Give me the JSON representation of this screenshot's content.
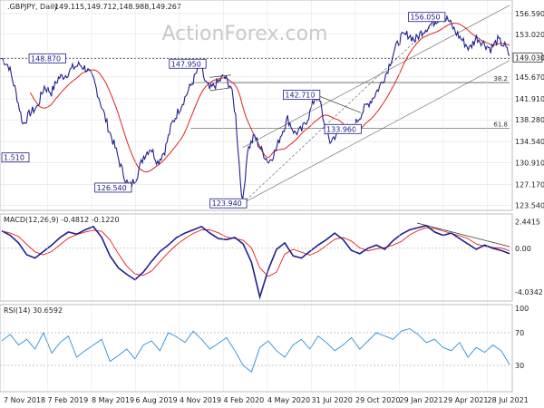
{
  "header": {
    "symbol_line": ".GBPJPY, Daily",
    "ohlc": "149.115,149.712,148.988,149.267"
  },
  "watermark": "ActionForex.com",
  "colors": {
    "price": "#1f1f8f",
    "ma": "#e02020",
    "macd": "#1f1f8f",
    "signal": "#e02020",
    "rsi": "#2b8fd9",
    "channel": "#777777",
    "grid": "#d9d9d9",
    "label_border": "#1a1a80"
  },
  "chart_data": [
    {
      "type": "line",
      "name": "price",
      "y_ticks": [
        "156.590",
        "153.020",
        "149.030",
        "145.670",
        "141.910",
        "138.280",
        "134.540",
        "130.910",
        "127.170",
        "123.540"
      ],
      "ylim": [
        123.0,
        158.3
      ],
      "x_ticks": [
        "7 Nov 2018",
        "7 Feb 2019",
        "8 May 2019",
        "6 Aug 2019",
        "4 Nov 2019",
        "4 Feb 2020",
        "4 May 2020",
        "31 Jul 2020",
        "29 Oct 2020",
        "29 Jan 2021",
        "29 Apr 2021",
        "28 Jul 2021"
      ],
      "current_price": "149.030",
      "fib_levels": [
        {
          "label": "38.2",
          "value": 144.7
        },
        {
          "label": "61.8",
          "value": 136.8
        }
      ],
      "reference_level": 148.87,
      "annotations": [
        "148.870",
        "147.950",
        "1.510",
        "126.540",
        "123.940",
        "142.710",
        "133.960",
        "156.050"
      ],
      "anchor_points": [
        [
          0,
          148.9
        ],
        [
          3,
          147.5
        ],
        [
          6,
          143.0
        ],
        [
          9,
          137.5
        ],
        [
          12,
          139.5
        ],
        [
          15,
          140.5
        ],
        [
          18,
          144.0
        ],
        [
          21,
          143.0
        ],
        [
          24,
          145.5
        ],
        [
          27,
          146.0
        ],
        [
          30,
          147.2
        ],
        [
          33,
          147.8
        ],
        [
          36,
          147.0
        ],
        [
          39,
          145.0
        ],
        [
          42,
          141.0
        ],
        [
          45,
          137.0
        ],
        [
          48,
          133.5
        ],
        [
          51,
          129.5
        ],
        [
          54,
          126.6
        ],
        [
          57,
          128.5
        ],
        [
          60,
          132.0
        ],
        [
          63,
          133.5
        ],
        [
          66,
          131.0
        ],
        [
          69,
          133.0
        ],
        [
          72,
          137.5
        ],
        [
          75,
          140.0
        ],
        [
          78,
          142.5
        ],
        [
          81,
          145.0
        ],
        [
          84,
          147.9
        ],
        [
          86,
          145.0
        ],
        [
          88,
          143.5
        ],
        [
          91,
          144.5
        ],
        [
          94,
          145.8
        ],
        [
          97,
          144.0
        ],
        [
          99,
          139.0
        ],
        [
          101,
          128.0
        ],
        [
          102,
          123.9
        ],
        [
          104,
          133.0
        ],
        [
          107,
          135.5
        ],
        [
          110,
          133.0
        ],
        [
          113,
          131.0
        ],
        [
          116,
          133.0
        ],
        [
          118,
          135.5
        ],
        [
          121,
          138.5
        ],
        [
          124,
          136.0
        ],
        [
          127,
          136.5
        ],
        [
          130,
          139.0
        ],
        [
          133,
          142.6
        ],
        [
          135,
          141.0
        ],
        [
          137,
          136.5
        ],
        [
          139,
          134.5
        ],
        [
          142,
          136.0
        ],
        [
          145,
          137.0
        ],
        [
          148,
          136.5
        ],
        [
          151,
          138.5
        ],
        [
          154,
          140.5
        ],
        [
          157,
          142.0
        ],
        [
          160,
          144.0
        ],
        [
          163,
          146.5
        ],
        [
          166,
          150.0
        ],
        [
          169,
          152.5
        ],
        [
          172,
          153.0
        ],
        [
          175,
          152.0
        ],
        [
          178,
          153.5
        ],
        [
          181,
          154.5
        ],
        [
          184,
          155.5
        ],
        [
          186,
          156.0
        ],
        [
          189,
          155.5
        ],
        [
          192,
          153.5
        ],
        [
          195,
          152.0
        ],
        [
          198,
          150.5
        ],
        [
          201,
          152.5
        ],
        [
          204,
          151.5
        ],
        [
          207,
          150.5
        ],
        [
          210,
          152.0
        ],
        [
          213,
          151.0
        ],
        [
          215,
          149.3
        ]
      ]
    },
    {
      "type": "line",
      "name": "MACD",
      "label": "MACD(12,26,9) -0.4812 -0.1220",
      "y_ticks": [
        "2.4415",
        "0.00",
        "-4.0342"
      ],
      "ylim": [
        -4.7,
        3.0
      ],
      "values": [
        1.6,
        1.2,
        0.5,
        -0.6,
        -0.9,
        -0.3,
        0.3,
        1.0,
        1.5,
        1.3,
        1.7,
        2.0,
        1.0,
        -0.7,
        -1.8,
        -2.4,
        -2.9,
        -2.2,
        -1.2,
        -0.3,
        0.3,
        1.0,
        1.4,
        1.7,
        2.0,
        1.4,
        0.9,
        0.8,
        1.0,
        0.4,
        -1.3,
        -4.5,
        -2.0,
        -0.1,
        0.5,
        -0.7,
        -0.9,
        -0.3,
        0.3,
        0.8,
        1.4,
        0.8,
        -0.2,
        -0.5,
        0.0,
        0.3,
        -0.1,
        0.7,
        1.3,
        1.7,
        1.9,
        2.1,
        1.5,
        1.2,
        1.4,
        0.9,
        0.4,
        -0.1,
        0.3,
        0.0,
        -0.2,
        -0.5
      ]
    },
    {
      "type": "line",
      "name": "RSI",
      "label": "RSI(14) 30.6592",
      "y_ticks": [
        "100",
        "70",
        "30",
        "0"
      ],
      "ylim": [
        0,
        100
      ],
      "values": [
        60,
        68,
        55,
        62,
        50,
        70,
        45,
        58,
        66,
        40,
        48,
        55,
        62,
        35,
        42,
        50,
        38,
        55,
        60,
        48,
        70,
        65,
        58,
        72,
        62,
        50,
        57,
        64,
        48,
        30,
        22,
        52,
        60,
        48,
        40,
        55,
        62,
        50,
        66,
        58,
        48,
        55,
        64,
        50,
        60,
        70,
        66,
        62,
        72,
        75,
        68,
        58,
        62,
        52,
        48,
        58,
        40,
        52,
        46,
        55,
        48,
        31
      ]
    }
  ]
}
